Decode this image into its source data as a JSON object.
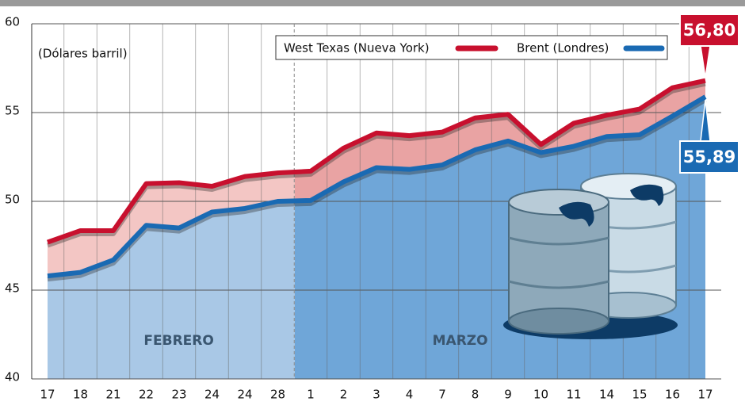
{
  "chart_data": {
    "type": "line",
    "subtitle": "(Dólares barril)",
    "categories": [
      "17",
      "18",
      "21",
      "22",
      "23",
      "24",
      "24",
      "28",
      "1",
      "2",
      "3",
      "4",
      "7",
      "8",
      "9",
      "10",
      "11",
      "14",
      "15",
      "16",
      "17"
    ],
    "series": [
      {
        "name": "West Texas (Nueva York)",
        "color": "#c8102e",
        "values": [
          47.7,
          48.35,
          48.35,
          51.0,
          51.05,
          50.85,
          51.4,
          51.6,
          51.7,
          53.0,
          53.85,
          53.7,
          53.9,
          54.7,
          54.9,
          53.2,
          54.4,
          54.85,
          55.2,
          56.4,
          56.8
        ],
        "value_labels": [
          null,
          null,
          null,
          null,
          null,
          null,
          null,
          null,
          null,
          null,
          null,
          null,
          null,
          null,
          null,
          null,
          null,
          null,
          null,
          null,
          "56,80"
        ]
      },
      {
        "name": "Brent (Londres)",
        "color": "#1a6ab3",
        "values": [
          45.8,
          46.0,
          46.7,
          48.65,
          48.5,
          49.4,
          49.6,
          50.0,
          50.05,
          51.1,
          51.9,
          51.8,
          52.05,
          52.9,
          53.4,
          52.75,
          53.1,
          53.65,
          53.75,
          54.8,
          55.89
        ],
        "value_labels": [
          null,
          null,
          null,
          null,
          null,
          null,
          null,
          null,
          null,
          null,
          null,
          null,
          null,
          null,
          null,
          null,
          null,
          null,
          null,
          null,
          "55,89"
        ]
      }
    ],
    "annotations": [
      "FEBRERO",
      "MARZO"
    ],
    "ylim": [
      40,
      60
    ],
    "yticks": [
      40,
      45,
      50,
      55,
      60
    ],
    "grid": true
  }
}
